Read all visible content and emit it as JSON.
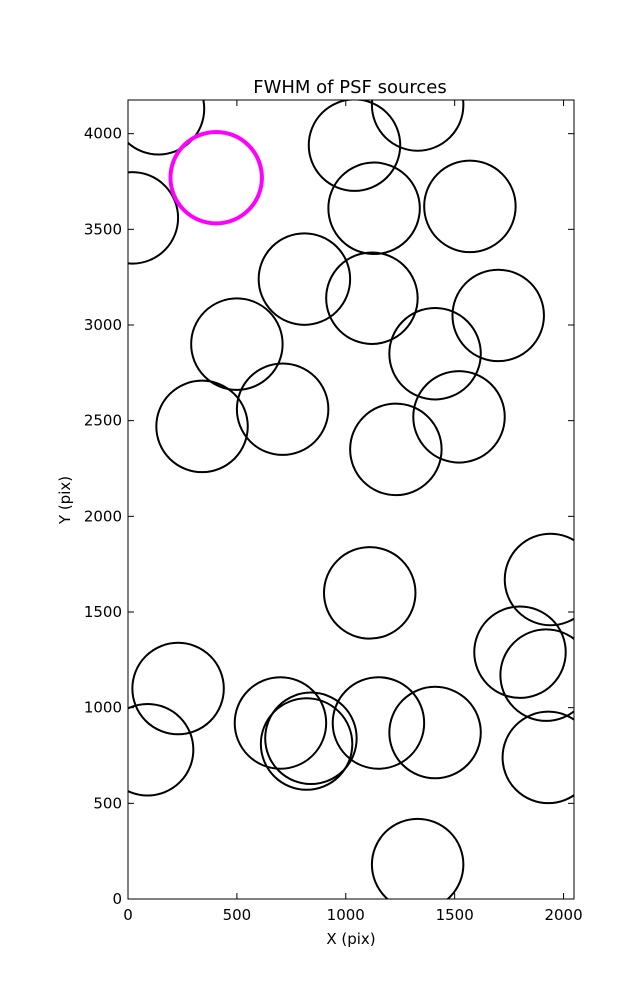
{
  "chart_data": {
    "type": "scatter",
    "title": "FWHM of PSF sources",
    "xlabel": "X (pix)",
    "ylabel": "Y (pix)",
    "xlim": [
      0,
      2048
    ],
    "ylim": [
      0,
      4176
    ],
    "xticks": [
      0,
      500,
      1000,
      1500,
      2000
    ],
    "yticks": [
      0,
      500,
      1000,
      1500,
      2000,
      2500,
      3000,
      3500,
      4000
    ],
    "grid": false,
    "marker": "open-circle",
    "radius_data_x": 210,
    "series": [
      {
        "color": "#000000",
        "points": [
          {
            "x": 140,
            "y": 4130
          },
          {
            "x": 1330,
            "y": 4150
          },
          {
            "x": 1040,
            "y": 3940
          },
          {
            "x": 1130,
            "y": 3610
          },
          {
            "x": 1570,
            "y": 3620
          },
          {
            "x": 20,
            "y": 3560
          },
          {
            "x": 810,
            "y": 3240
          },
          {
            "x": 1120,
            "y": 3140
          },
          {
            "x": 1700,
            "y": 3050
          },
          {
            "x": 500,
            "y": 2900
          },
          {
            "x": 1410,
            "y": 2850
          },
          {
            "x": 710,
            "y": 2560
          },
          {
            "x": 1520,
            "y": 2520
          },
          {
            "x": 340,
            "y": 2470
          },
          {
            "x": 1230,
            "y": 2350
          },
          {
            "x": 1940,
            "y": 1670
          },
          {
            "x": 1110,
            "y": 1600
          },
          {
            "x": 1800,
            "y": 1290
          },
          {
            "x": 1920,
            "y": 1170
          },
          {
            "x": 230,
            "y": 1100
          },
          {
            "x": 700,
            "y": 920
          },
          {
            "x": 1150,
            "y": 920
          },
          {
            "x": 840,
            "y": 840
          },
          {
            "x": 820,
            "y": 810
          },
          {
            "x": 1410,
            "y": 870
          },
          {
            "x": 90,
            "y": 780
          },
          {
            "x": 1930,
            "y": 740
          },
          {
            "x": 1330,
            "y": 180
          }
        ]
      },
      {
        "color": "#ff00ff",
        "points": [
          {
            "x": 405,
            "y": 3770
          }
        ]
      }
    ]
  }
}
